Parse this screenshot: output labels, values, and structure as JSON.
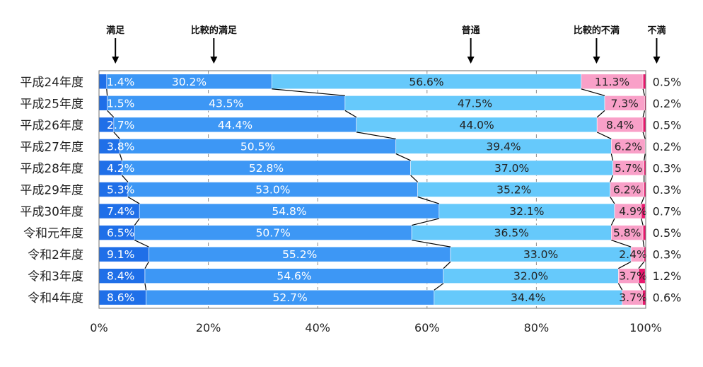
{
  "chart_data": {
    "type": "bar",
    "orientation": "horizontal",
    "stacked": true,
    "categories": [
      "平成24年度",
      "平成25年度",
      "平成26年度",
      "平成27年度",
      "平成28年度",
      "平成29年度",
      "平成30年度",
      "令和元年度",
      "令和2年度",
      "令和3年度",
      "令和4年度"
    ],
    "series": [
      {
        "name": "満足",
        "color": "#1f6fe8",
        "values": [
          1.4,
          1.5,
          2.7,
          3.8,
          4.2,
          5.3,
          7.4,
          6.5,
          9.1,
          8.4,
          8.6
        ]
      },
      {
        "name": "比較的満足",
        "color": "#3d97f5",
        "values": [
          30.2,
          43.5,
          44.4,
          50.5,
          52.8,
          53.0,
          54.8,
          50.7,
          55.2,
          54.6,
          52.7
        ]
      },
      {
        "name": "普通",
        "color": "#66c9fb",
        "values": [
          56.6,
          47.5,
          44.0,
          39.4,
          37.0,
          35.2,
          32.1,
          36.5,
          33.0,
          32.0,
          34.4
        ]
      },
      {
        "name": "比較的不満",
        "color": "#f9a0c8",
        "values": [
          11.3,
          7.3,
          8.4,
          6.2,
          5.7,
          6.2,
          4.9,
          5.8,
          2.4,
          3.7,
          3.7
        ]
      },
      {
        "name": "不満",
        "color": "#e8186d",
        "values": [
          0.5,
          0.2,
          0.5,
          0.2,
          0.3,
          0.3,
          0.7,
          0.5,
          0.3,
          1.2,
          0.6
        ]
      }
    ],
    "value_labels": [
      [
        "1.4%",
        "30.2%",
        "56.6%",
        "11.3%",
        "0.5%"
      ],
      [
        "1.5%",
        "43.5%",
        "47.5%",
        "7.3%",
        "0.2%"
      ],
      [
        "2.7%",
        "44.4%",
        "44.0%",
        "8.4%",
        "0.5%"
      ],
      [
        "3.8%",
        "50.5%",
        "39.4%",
        "6.2%",
        "0.2%"
      ],
      [
        "4.2%",
        "52.8%",
        "37.0%",
        "5.7%",
        "0.3%"
      ],
      [
        "5.3%",
        "53.0%",
        "35.2%",
        "6.2%",
        "0.3%"
      ],
      [
        "7.4%",
        "54.8%",
        "32.1%",
        "4.9%",
        "0.7%"
      ],
      [
        "6.5%",
        "50.7%",
        "36.5%",
        "5.8%",
        "0.5%"
      ],
      [
        "9.1%",
        "55.2%",
        "33.0%",
        "2.4%",
        "0.3%"
      ],
      [
        "8.4%",
        "54.6%",
        "32.0%",
        "3.7%",
        "1.2%"
      ],
      [
        "8.6%",
        "52.7%",
        "34.4%",
        "3.7%",
        "0.6%"
      ]
    ],
    "xlim": [
      0,
      100
    ],
    "x_ticks": [
      "0%",
      "20%",
      "40%",
      "60%",
      "80%",
      "100%"
    ],
    "legend_arrows": [
      {
        "label": "満足",
        "x": 3
      },
      {
        "label": "比較的満足",
        "x": 21
      },
      {
        "label": "普通",
        "x": 68
      },
      {
        "label": "比較的不満",
        "x": 91
      },
      {
        "label": "不満",
        "x": 102
      }
    ],
    "grid": true,
    "series_connector_lines": true
  }
}
